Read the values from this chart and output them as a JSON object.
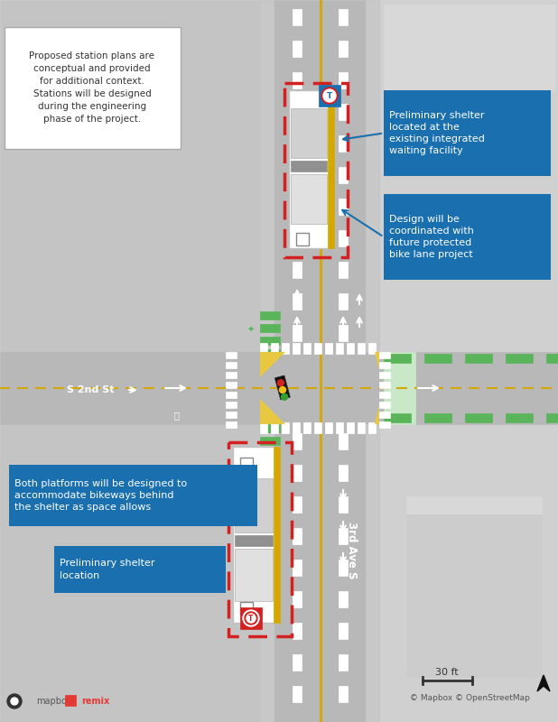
{
  "bg_color": "#e2e2e2",
  "road_color": "#b8b8b8",
  "block_light": "#d0d0d0",
  "block_mid": "#c4c4c4",
  "white": "#ffffff",
  "yellow": "#e8c840",
  "yellow_line": "#d4a800",
  "green_stripe": "#5ab55a",
  "green_bg": "#c8e8c8",
  "platform_border": "#d42020",
  "annotation_bg": "#1a6faf",
  "annotation_text": "#ffffff",
  "note_bg": "#ffffff",
  "note_border": "#cccccc",
  "text_dark": "#333333",
  "text_white": "#ffffff",
  "signal_red": "#d42020",
  "signal_yellow": "#f0c010",
  "signal_green": "#30a030",
  "icon_blue": "#1a6faf",
  "icon_red": "#d42020",
  "label_s2nd": "S 2nd St",
  "label_3rdave": "3rd Ave S",
  "note_text": "Proposed station plans are\nconceptual and provided\nfor additional context.\nStations will be designed\nduring the engineering\nphase of the project.",
  "ann1_text": "Preliminary shelter\nlocated at the\nexisting integrated\nwaiting facility",
  "ann2_text": "Design will be\ncoordinated with\nfuture protected\nbike lane project",
  "ann3_text": "Both platforms will be designed to\naccommodate bikeways behind\nthe shelter as space allows",
  "ann4_text": "Preliminary shelter\nlocation",
  "scale_text": "30 ft",
  "copyright_text": "© Mapbox © OpenStreetMap"
}
